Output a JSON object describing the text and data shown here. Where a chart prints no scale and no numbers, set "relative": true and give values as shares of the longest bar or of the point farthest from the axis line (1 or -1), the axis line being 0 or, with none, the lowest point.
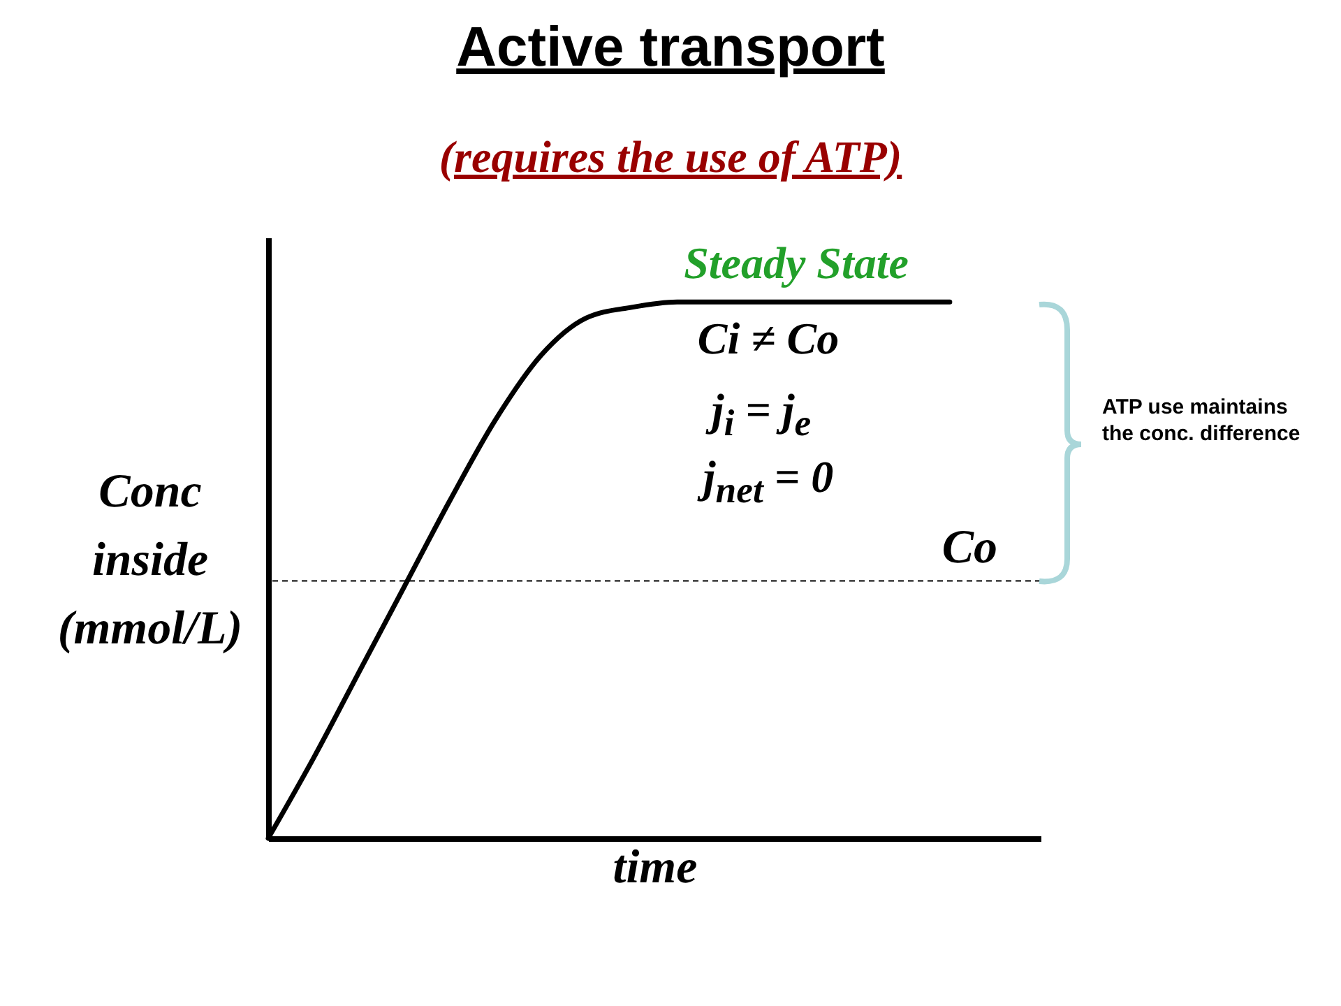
{
  "chart_data": {
    "type": "line",
    "title": "Active transport",
    "subtitle": "(requires the use of ATP)",
    "xlabel": "time",
    "ylabel": "Conc inside (mmol/L)",
    "relative": true,
    "categories": [
      null,
      null,
      null,
      null,
      null,
      null,
      null,
      null,
      null,
      null,
      null,
      null,
      null,
      null,
      null,
      null,
      null,
      null
    ],
    "series": [
      {
        "color": "#000000",
        "values": [
          0,
          0.15,
          0.31,
          0.47,
          0.63,
          0.78,
          0.9,
          0.97,
          0.99,
          1,
          1,
          1,
          1,
          1,
          1,
          1,
          null,
          null
        ]
      }
    ],
    "ref_lines": [
      {
        "axis": "y",
        "value": 0.48,
        "label": "Co",
        "color": "#000000",
        "line_style": "dashed"
      }
    ],
    "annotations": [
      "Steady State",
      "Ci ≠ Co",
      "j$_{i}$ = j$_{e}$",
      "j$_{net}$ = 0",
      "ATP use maintains the conc. difference"
    ],
    "grid": false
  }
}
